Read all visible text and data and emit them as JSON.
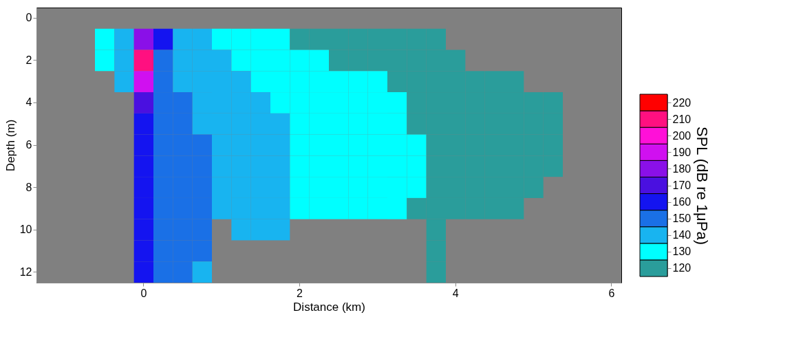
{
  "chart_data": {
    "type": "heatmap",
    "xlabel": "Distance (km)",
    "ylabel": "Depth (m)",
    "clabel": "SPL (dB re 1μPa)",
    "categories": [
      null,
      null,
      null,
      null,
      null,
      "0",
      null,
      null,
      null,
      null,
      null,
      null,
      null,
      "2",
      null,
      null,
      null,
      null,
      null,
      null,
      null,
      "4",
      null,
      null,
      null,
      null,
      null,
      null,
      null,
      "6"
    ],
    "y_categories": [
      "0",
      null,
      "2",
      null,
      "4",
      null,
      "6",
      null,
      "8",
      null,
      "10",
      null,
      "12"
    ],
    "cells": [
      [
        null,
        null,
        null,
        null,
        null,
        null,
        null,
        null,
        null,
        null,
        null,
        null,
        null,
        null,
        null,
        null,
        null,
        null,
        null,
        null,
        null,
        null,
        null,
        null,
        null,
        null,
        null,
        null,
        null,
        null
      ],
      [
        null,
        null,
        null,
        130,
        140,
        180,
        160,
        140,
        140,
        130,
        130,
        130,
        130,
        120,
        120,
        120,
        120,
        120,
        120,
        120,
        120,
        null,
        null,
        null,
        null,
        null,
        null,
        null,
        null,
        null
      ],
      [
        null,
        null,
        null,
        130,
        140,
        210,
        150,
        140,
        140,
        140,
        130,
        130,
        130,
        130,
        130,
        120,
        120,
        120,
        120,
        120,
        120,
        120,
        null,
        null,
        null,
        null,
        null,
        null,
        null,
        null
      ],
      [
        null,
        null,
        null,
        null,
        140,
        190,
        150,
        140,
        140,
        140,
        140,
        130,
        130,
        130,
        130,
        130,
        130,
        130,
        120,
        120,
        120,
        120,
        120,
        120,
        120,
        null,
        null,
        null,
        null,
        null
      ],
      [
        null,
        null,
        null,
        null,
        null,
        170,
        150,
        150,
        140,
        140,
        140,
        140,
        130,
        130,
        130,
        130,
        130,
        130,
        130,
        120,
        120,
        120,
        120,
        120,
        120,
        120,
        120,
        null,
        null,
        null
      ],
      [
        null,
        null,
        null,
        null,
        null,
        160,
        150,
        150,
        140,
        140,
        140,
        140,
        140,
        130,
        130,
        130,
        130,
        130,
        130,
        120,
        120,
        120,
        120,
        120,
        120,
        120,
        120,
        null,
        null,
        null
      ],
      [
        null,
        null,
        null,
        null,
        null,
        160,
        150,
        150,
        150,
        140,
        140,
        140,
        140,
        130,
        130,
        130,
        130,
        130,
        130,
        130,
        120,
        120,
        120,
        120,
        120,
        120,
        120,
        null,
        null,
        null
      ],
      [
        null,
        null,
        null,
        null,
        null,
        160,
        150,
        150,
        150,
        140,
        140,
        140,
        140,
        130,
        130,
        130,
        130,
        130,
        130,
        130,
        120,
        120,
        120,
        120,
        120,
        120,
        120,
        null,
        null,
        null
      ],
      [
        null,
        null,
        null,
        null,
        null,
        160,
        150,
        150,
        150,
        140,
        140,
        140,
        140,
        130,
        130,
        130,
        130,
        130,
        130,
        130,
        120,
        120,
        120,
        120,
        120,
        120,
        null,
        null,
        null,
        null
      ],
      [
        null,
        null,
        null,
        null,
        null,
        160,
        150,
        150,
        150,
        140,
        140,
        140,
        140,
        130,
        130,
        130,
        130,
        130,
        130,
        120,
        120,
        120,
        120,
        120,
        120,
        null,
        null,
        null,
        null,
        null
      ],
      [
        null,
        null,
        null,
        null,
        null,
        160,
        150,
        150,
        150,
        null,
        140,
        140,
        140,
        null,
        null,
        null,
        null,
        null,
        null,
        null,
        120,
        null,
        null,
        null,
        null,
        null,
        null,
        null,
        null,
        null
      ],
      [
        null,
        null,
        null,
        null,
        null,
        160,
        150,
        150,
        150,
        null,
        null,
        null,
        null,
        null,
        null,
        null,
        null,
        null,
        null,
        null,
        120,
        null,
        null,
        null,
        null,
        null,
        null,
        null,
        null,
        null
      ],
      [
        null,
        null,
        null,
        null,
        null,
        160,
        150,
        150,
        140,
        null,
        null,
        null,
        null,
        null,
        null,
        null,
        null,
        null,
        null,
        null,
        120,
        null,
        null,
        null,
        null,
        null,
        null,
        null,
        null,
        null
      ]
    ],
    "clim": [
      115,
      225
    ],
    "cticks": [
      120,
      130,
      140,
      150,
      160,
      170,
      180,
      190,
      200,
      210,
      220
    ],
    "colors": [
      "#2a9d9b",
      "#00ffff",
      "#18b4f0",
      "#1a70e6",
      "#1414f0",
      "#4a10e0",
      "#8a10e8",
      "#d010f0",
      "#ff10d8",
      "#ff1080",
      "#ff0000"
    ],
    "grid": false
  }
}
